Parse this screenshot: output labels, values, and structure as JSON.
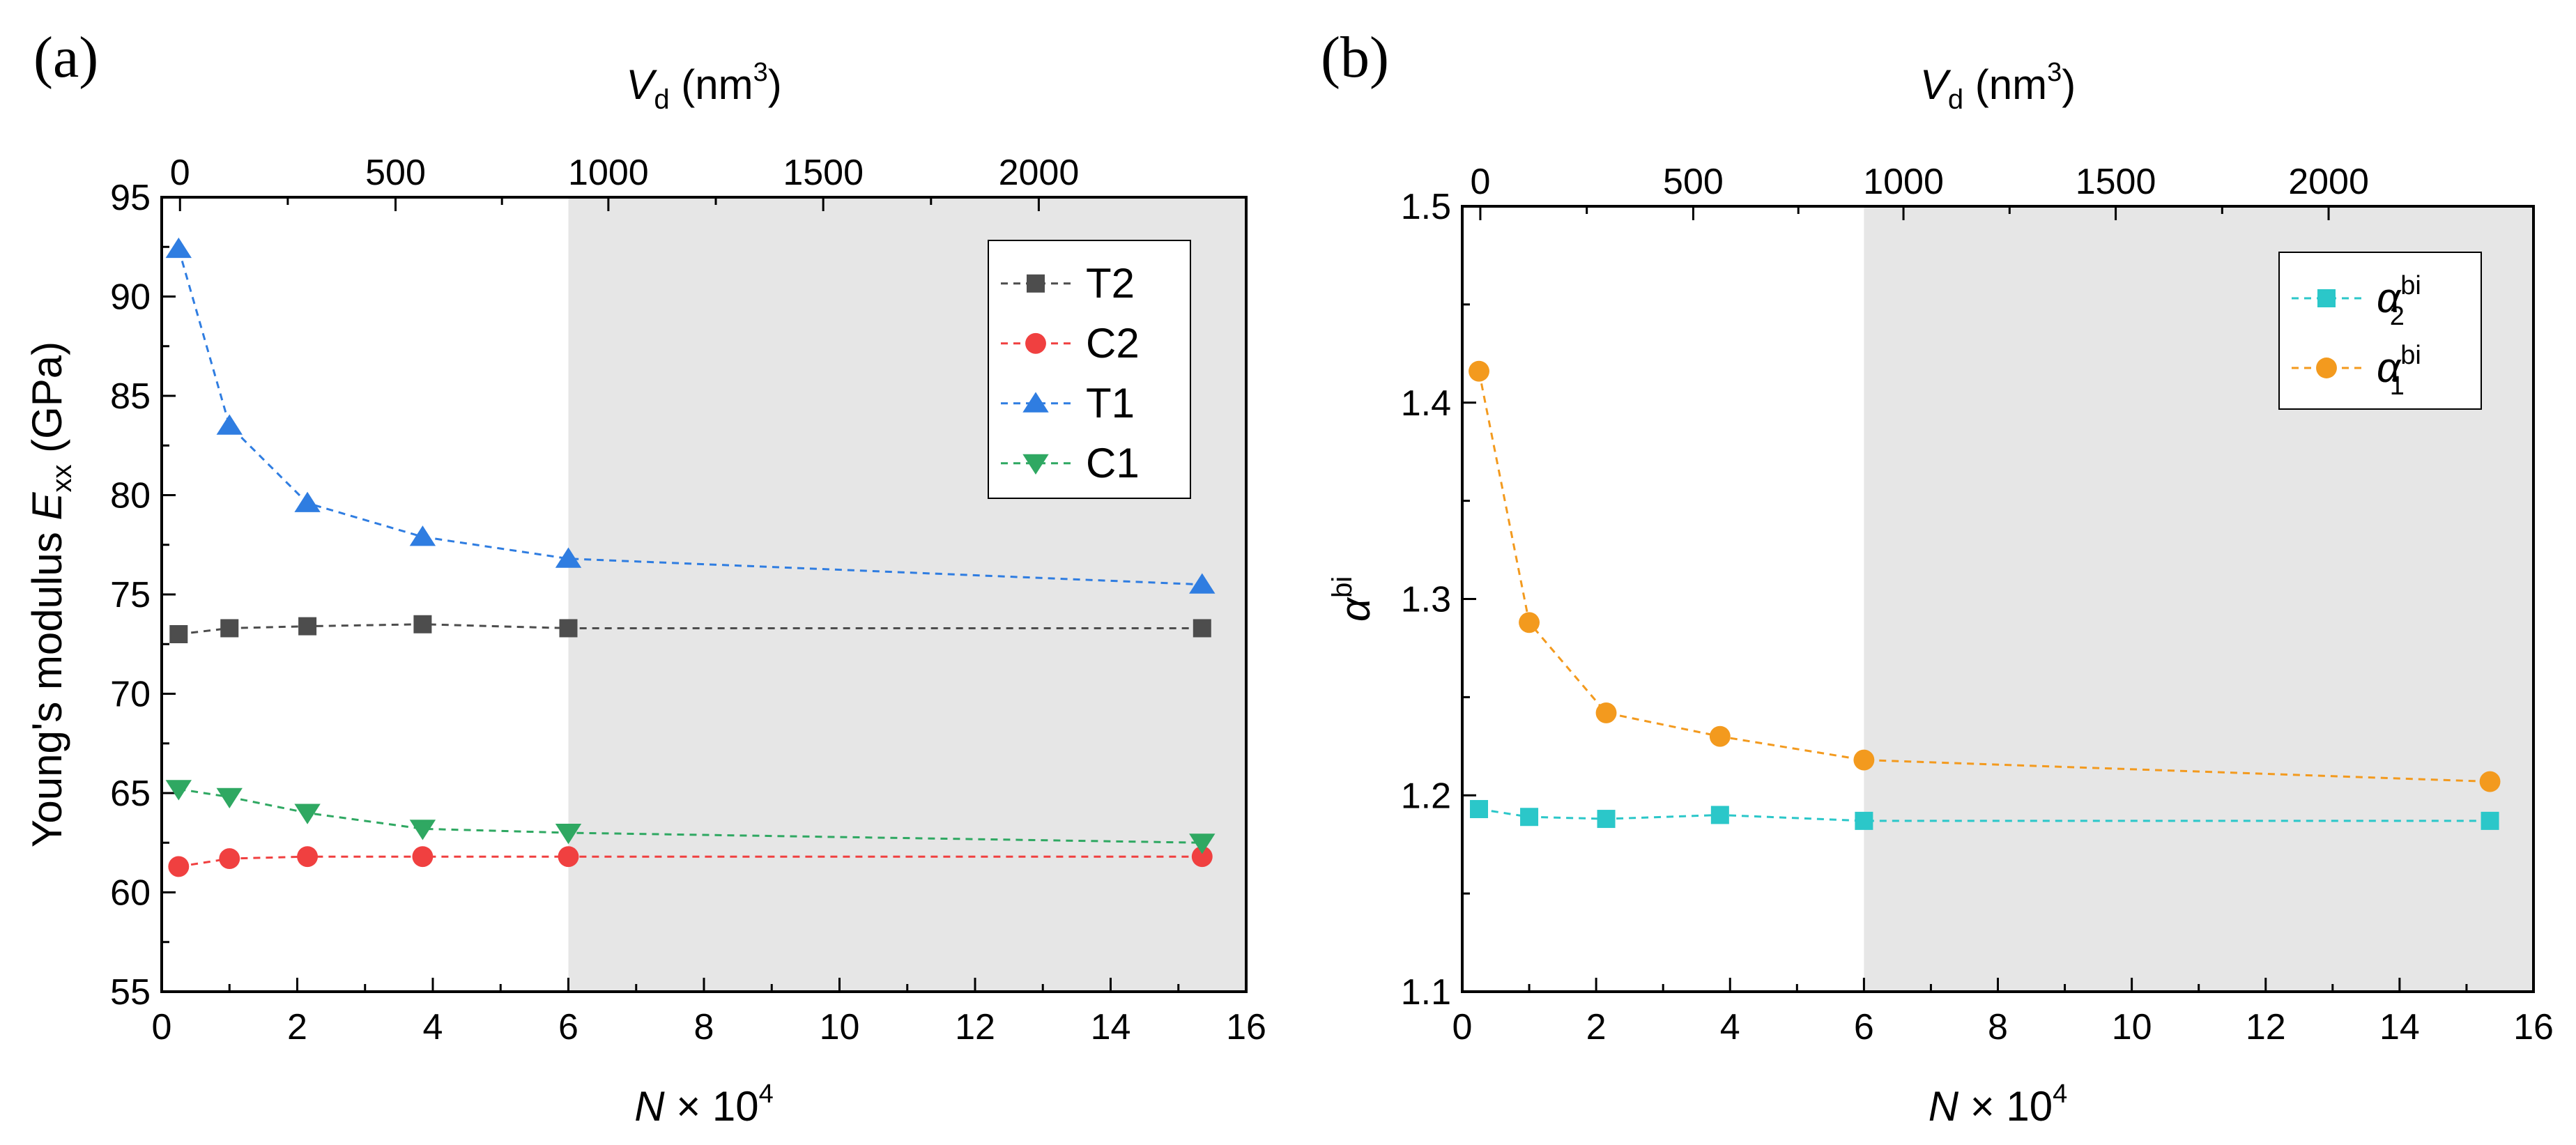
{
  "chart_data": [
    {
      "panel_label": "(a)",
      "type": "line",
      "xlabel": "N × 10^4",
      "xlabel_parts": {
        "var": "N",
        "mid": " × 10",
        "sup": "4"
      },
      "ylabel": "Young's modulus E_xx (GPa)",
      "ylabel_parts": {
        "pre": "Young's modulus ",
        "var": "E",
        "sub": "xx",
        "post": " (GPa)"
      },
      "top_xlabel": "V_d (nm^3)",
      "top_xlabel_parts": {
        "var": "V",
        "sub": "d",
        "pre_unit": " (nm",
        "sup": "3",
        "post": ")"
      },
      "xlim": [
        0,
        16
      ],
      "ylim": [
        55,
        95
      ],
      "x_ticks": [
        0,
        2,
        4,
        6,
        8,
        10,
        12,
        14,
        16
      ],
      "x_tick_labels": [
        "0",
        "2",
        "4",
        "6",
        "8",
        "10",
        "12",
        "14",
        "16"
      ],
      "y_ticks": [
        55,
        60,
        65,
        70,
        75,
        80,
        85,
        90,
        95
      ],
      "y_tick_labels": [
        "55",
        "60",
        "65",
        "70",
        "75",
        "80",
        "85",
        "90",
        "95"
      ],
      "top_ticks_in_x_units": [
        0.27,
        3.45,
        6.59,
        9.76,
        12.94
      ],
      "top_tick_labels": [
        "0",
        "500",
        "1000",
        "1500",
        "2000"
      ],
      "shaded_x_range": [
        6,
        16
      ],
      "legend_position": "top-right",
      "x": [
        0.25,
        1,
        2.15,
        3.85,
        6,
        15.35
      ],
      "series": [
        {
          "name": "T2",
          "marker": "square",
          "color": "#4d4d4d",
          "values": [
            73.0,
            73.3,
            73.4,
            73.5,
            73.3,
            73.3
          ]
        },
        {
          "name": "C2",
          "marker": "circle",
          "color": "#f04040",
          "values": [
            61.3,
            61.7,
            61.8,
            61.8,
            61.8,
            61.8
          ]
        },
        {
          "name": "T1",
          "marker": "triangle-up",
          "color": "#2f7de1",
          "values": [
            92.4,
            83.5,
            79.6,
            77.9,
            76.8,
            75.5
          ]
        },
        {
          "name": "C1",
          "marker": "triangle-down",
          "color": "#2fa862",
          "values": [
            65.2,
            64.8,
            64.0,
            63.2,
            63.0,
            62.5
          ]
        }
      ]
    },
    {
      "panel_label": "(b)",
      "type": "line",
      "xlabel": "N × 10^4",
      "xlabel_parts": {
        "var": "N",
        "mid": " × 10",
        "sup": "4"
      },
      "ylabel": "α^bi",
      "ylabel_parts": {
        "var": "α",
        "sup": "bi"
      },
      "top_xlabel": "V_d (nm^3)",
      "top_xlabel_parts": {
        "var": "V",
        "sub": "d",
        "pre_unit": " (nm",
        "sup": "3",
        "post": ")"
      },
      "xlim": [
        0,
        16
      ],
      "ylim": [
        1.1,
        1.5
      ],
      "x_ticks": [
        0,
        2,
        4,
        6,
        8,
        10,
        12,
        14,
        16
      ],
      "x_tick_labels": [
        "0",
        "2",
        "4",
        "6",
        "8",
        "10",
        "12",
        "14",
        "16"
      ],
      "y_ticks": [
        1.1,
        1.2,
        1.3,
        1.4,
        1.5
      ],
      "y_tick_labels": [
        "1.1",
        "1.2",
        "1.3",
        "1.4",
        "1.5"
      ],
      "top_ticks_in_x_units": [
        0.27,
        3.45,
        6.59,
        9.76,
        12.94
      ],
      "top_tick_labels": [
        "0",
        "500",
        "1000",
        "1500",
        "2000"
      ],
      "shaded_x_range": [
        6,
        16
      ],
      "legend_position": "top-right",
      "x": [
        0.25,
        1,
        2.15,
        3.85,
        6,
        15.35
      ],
      "series": [
        {
          "name": "α2^bi",
          "label_parts": {
            "var": "α",
            "sup": "bi",
            "sub": "2"
          },
          "marker": "square",
          "color": "#2bc7c9",
          "values": [
            1.193,
            1.189,
            1.188,
            1.19,
            1.187,
            1.187
          ]
        },
        {
          "name": "α1^bi",
          "label_parts": {
            "var": "α",
            "sup": "bi",
            "sub": "1"
          },
          "marker": "circle",
          "color": "#f39a1e",
          "values": [
            1.416,
            1.288,
            1.242,
            1.23,
            1.218,
            1.207
          ]
        }
      ]
    }
  ]
}
